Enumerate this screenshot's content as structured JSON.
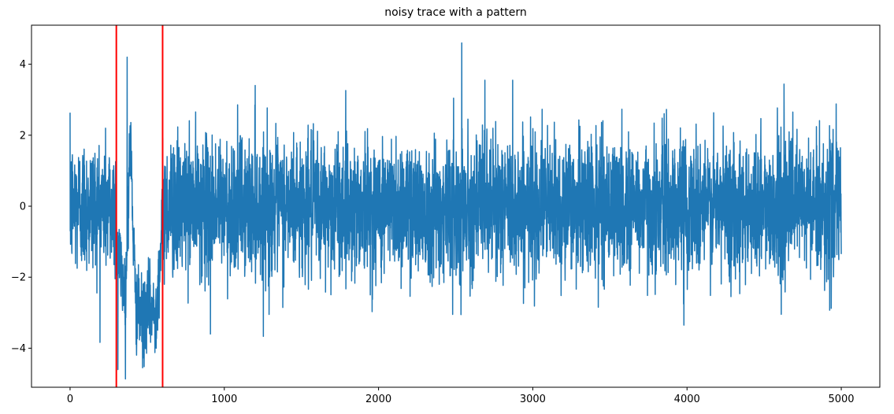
{
  "chart_data": {
    "type": "line",
    "title": "noisy trace with a pattern",
    "xlabel": "",
    "ylabel": "",
    "xlim": [
      -250,
      5250
    ],
    "ylim": [
      -5.1,
      5.1
    ],
    "x_ticks": [
      0,
      1000,
      2000,
      3000,
      4000,
      5000
    ],
    "x_tick_labels": [
      "0",
      "1000",
      "2000",
      "3000",
      "4000",
      "5000"
    ],
    "y_ticks": [
      -4,
      -2,
      0,
      2,
      4
    ],
    "y_tick_labels": [
      "−4",
      "−2",
      "0",
      "2",
      "4"
    ],
    "grid": false,
    "series": [
      {
        "name": "",
        "color": "#1f77b4",
        "x_range": [
          0,
          5000
        ],
        "num_points": 5000,
        "noise_std": 1.0,
        "pattern": {
          "x_start": 300,
          "x_end": 600,
          "depth_min": -4.6
        },
        "spikes": [
          {
            "x": 370,
            "y": 4.2
          },
          {
            "x": 310,
            "y": -4.6
          },
          {
            "x": 470,
            "y": -4.55
          },
          {
            "x": 910,
            "y": -3.6
          },
          {
            "x": 1200,
            "y": 3.4
          },
          {
            "x": 1290,
            "y": -3.05
          },
          {
            "x": 2480,
            "y": -3.05
          },
          {
            "x": 2540,
            "y": 4.6
          },
          {
            "x": 2690,
            "y": 3.55
          },
          {
            "x": 2870,
            "y": 3.55
          },
          {
            "x": 3980,
            "y": -3.35
          }
        ]
      }
    ],
    "vertical_lines": [
      {
        "x": 300,
        "color": "#ff0000"
      },
      {
        "x": 600,
        "color": "#ff0000"
      }
    ]
  }
}
